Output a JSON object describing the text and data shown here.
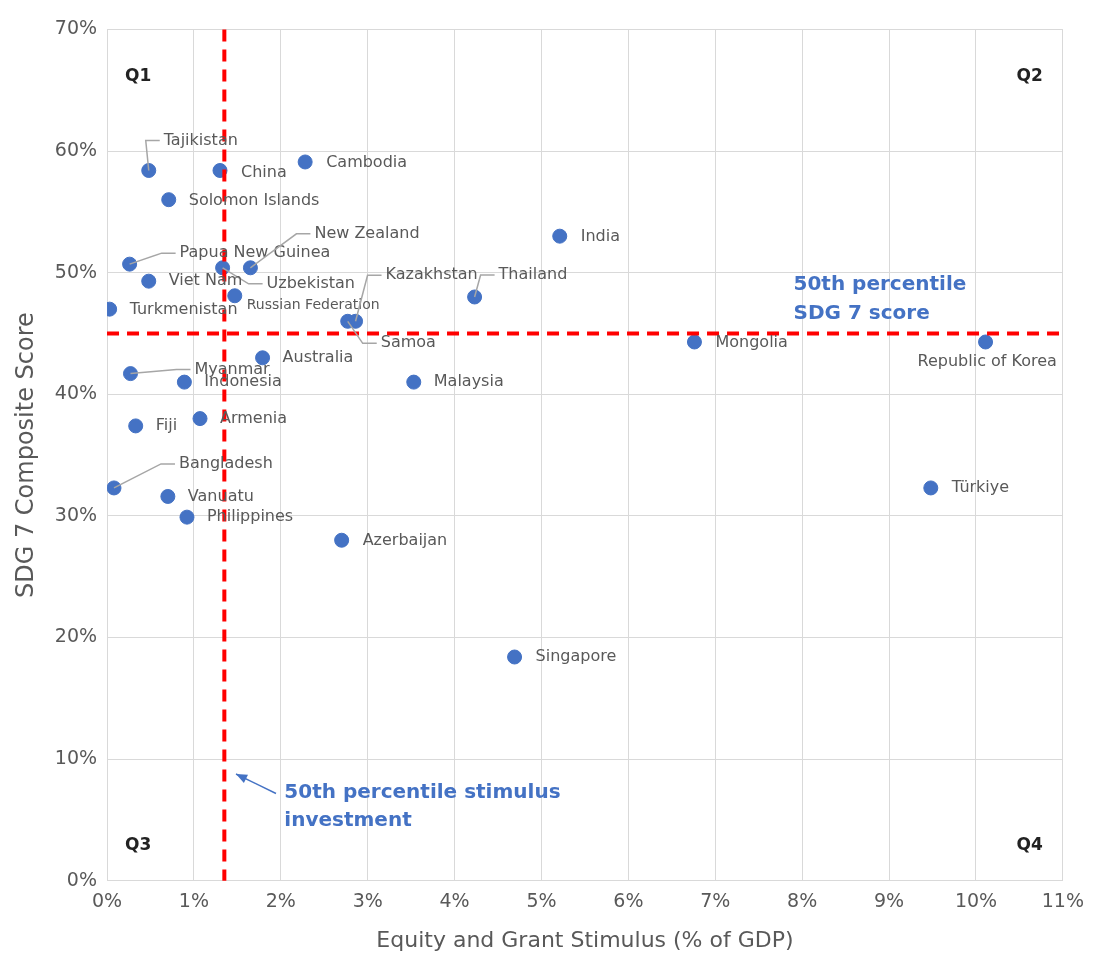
{
  "chart_data": {
    "type": "scatter",
    "xlabel": "Equity and Grant Stimulus (% of GDP)",
    "ylabel": "SDG 7 Composite Score",
    "series": [
      {
        "color": "#4472c4",
        "x": [
          0.48,
          1.3,
          2.28,
          0.71,
          5.21,
          0.26,
          1.65,
          1.33,
          0.48,
          1.47,
          4.23,
          0.03,
          2.86,
          2.77,
          6.76,
          10.11,
          1.79,
          0.27,
          0.89,
          3.53,
          1.07,
          0.33,
          0.08,
          9.48,
          0.7,
          0.92,
          2.7,
          4.69
        ],
        "values": [
          58.4,
          58.4,
          59.1,
          56.0,
          53.0,
          50.7,
          50.4,
          50.4,
          49.3,
          48.1,
          48.0,
          47.0,
          46.0,
          46.0,
          44.3,
          44.3,
          43.0,
          41.7,
          41.0,
          41.0,
          38.0,
          37.4,
          32.3,
          32.3,
          31.6,
          29.9,
          28.0,
          18.4
        ]
      }
    ],
    "xlim": [
      0,
      11
    ],
    "xticks": [
      {
        "value": 0,
        "label": "0%"
      },
      {
        "value": 1,
        "label": "1%"
      },
      {
        "value": 2,
        "label": "2%"
      },
      {
        "value": 3,
        "label": "3%"
      },
      {
        "value": 4,
        "label": "4%"
      },
      {
        "value": 5,
        "label": "5%"
      },
      {
        "value": 6,
        "label": "6%"
      },
      {
        "value": 7,
        "label": "7%"
      },
      {
        "value": 8,
        "label": "8%"
      },
      {
        "value": 9,
        "label": "9%"
      },
      {
        "value": 10,
        "label": "10%"
      },
      {
        "value": 11,
        "label": "11%"
      }
    ],
    "ylim": [
      0,
      70
    ],
    "yticks": [
      {
        "value": 0,
        "label": "0%"
      },
      {
        "value": 10,
        "label": "10%"
      },
      {
        "value": 20,
        "label": "20%"
      },
      {
        "value": 30,
        "label": "30%"
      },
      {
        "value": 40,
        "label": "40%"
      },
      {
        "value": 50,
        "label": "50%"
      },
      {
        "value": 60,
        "label": "60%"
      },
      {
        "value": 70,
        "label": "70%"
      }
    ],
    "grid": true,
    "legend": false,
    "marker": "circle",
    "ref_lines": [
      {
        "axis": "x",
        "value": 1.35,
        "label": "50th percentile stimulus investment",
        "color": "#ff0000",
        "line_style": "dashed"
      },
      {
        "axis": "y",
        "value": 45,
        "label": "50th percentile SDG 7 score",
        "color": "#ff0000",
        "line_style": "dashed"
      }
    ],
    "annotations": [
      {
        "text": "Tajikistan",
        "x": 0.48,
        "y": 58.4
      },
      {
        "text": "China",
        "x": 1.3,
        "y": 58.4
      },
      {
        "text": "Cambodia",
        "x": 2.28,
        "y": 59.1
      },
      {
        "text": "Solomon Islands",
        "x": 0.71,
        "y": 56.0
      },
      {
        "text": "India",
        "x": 5.21,
        "y": 53.0
      },
      {
        "text": "Papua New Guinea",
        "x": 0.26,
        "y": 50.7
      },
      {
        "text": "New Zealand",
        "x": 1.65,
        "y": 50.4
      },
      {
        "text": "Uzbekistan",
        "x": 1.33,
        "y": 50.4
      },
      {
        "text": "Viet Nam",
        "x": 0.48,
        "y": 49.3
      },
      {
        "text": "Russian Federation",
        "x": 1.47,
        "y": 48.1
      },
      {
        "text": "Thailand",
        "x": 4.23,
        "y": 48.0
      },
      {
        "text": "Turkmenistan",
        "x": 0.03,
        "y": 47.0
      },
      {
        "text": "Kazakhstan",
        "x": 2.86,
        "y": 46.0
      },
      {
        "text": "Samoa",
        "x": 2.77,
        "y": 46.0
      },
      {
        "text": "Mongolia",
        "x": 6.76,
        "y": 44.3
      },
      {
        "text": "Republic of Korea",
        "x": 10.11,
        "y": 44.3
      },
      {
        "text": "Australia",
        "x": 1.79,
        "y": 43.0
      },
      {
        "text": "Myanmar",
        "x": 0.27,
        "y": 41.7
      },
      {
        "text": "Indonesia",
        "x": 0.89,
        "y": 41.0
      },
      {
        "text": "Malaysia",
        "x": 3.53,
        "y": 41.0
      },
      {
        "text": "Armenia",
        "x": 1.07,
        "y": 38.0
      },
      {
        "text": "Fiji",
        "x": 0.33,
        "y": 37.4
      },
      {
        "text": "Bangladesh",
        "x": 0.08,
        "y": 32.3
      },
      {
        "text": "Türkiye",
        "x": 9.48,
        "y": 32.3
      },
      {
        "text": "Vanuatu",
        "x": 0.7,
        "y": 31.6
      },
      {
        "text": "Philippines",
        "x": 0.92,
        "y": 29.9
      },
      {
        "text": "Azerbaijan",
        "x": 2.7,
        "y": 28.0
      },
      {
        "text": "Singapore",
        "x": 4.69,
        "y": 18.4
      },
      "Q1",
      "Q2",
      "Q3",
      "Q4"
    ]
  }
}
